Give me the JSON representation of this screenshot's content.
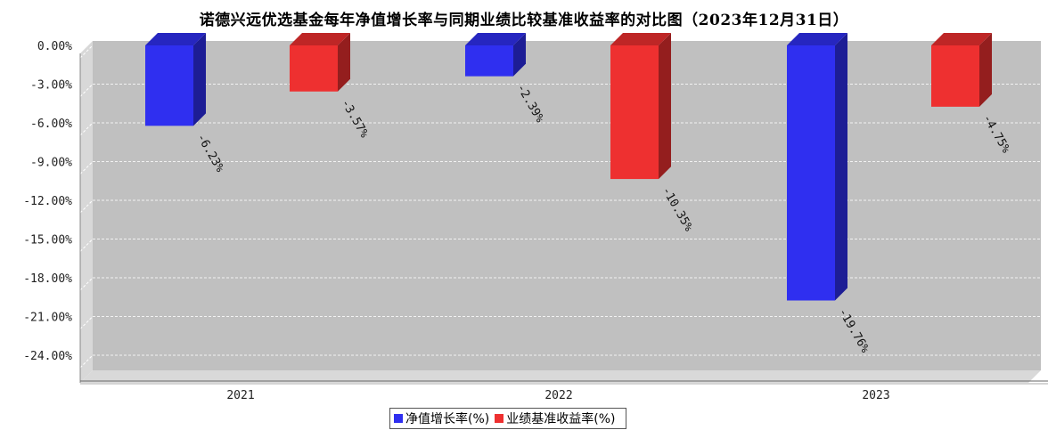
{
  "chart_data": {
    "type": "bar",
    "title": "诺德兴远优选基金每年净值增长率与同期业绩比较基准收益率的对比图（2023年12月31日）",
    "categories": [
      "2021",
      "2022",
      "2023"
    ],
    "series": [
      {
        "name": "净值增长率(%)",
        "color": "#2f2ff0",
        "values": [
          -6.23,
          -2.39,
          -19.76
        ]
      },
      {
        "name": "业绩基准收益率(%)",
        "color": "#ee3030",
        "values": [
          -3.57,
          -10.35,
          -4.75
        ]
      }
    ],
    "data_labels": [
      [
        "-6.23%",
        "-2.39%",
        "-19.76%"
      ],
      [
        "-3.57%",
        "-10.35%",
        "-4.75%"
      ]
    ],
    "y_ticks": [
      0,
      -3,
      -6,
      -9,
      -12,
      -15,
      -18,
      -21,
      -24
    ],
    "y_tick_labels": [
      "0.00%",
      "-3.00%",
      "-6.00%",
      "-9.00%",
      "-12.00%",
      "-15.00%",
      "-18.00%",
      "-21.00%",
      "-24.00%"
    ],
    "ylim": [
      -25,
      0
    ],
    "xlabel": "",
    "ylabel": "",
    "grid": true,
    "legend_position": "bottom-center",
    "plot_background": "#c0c0c0"
  }
}
